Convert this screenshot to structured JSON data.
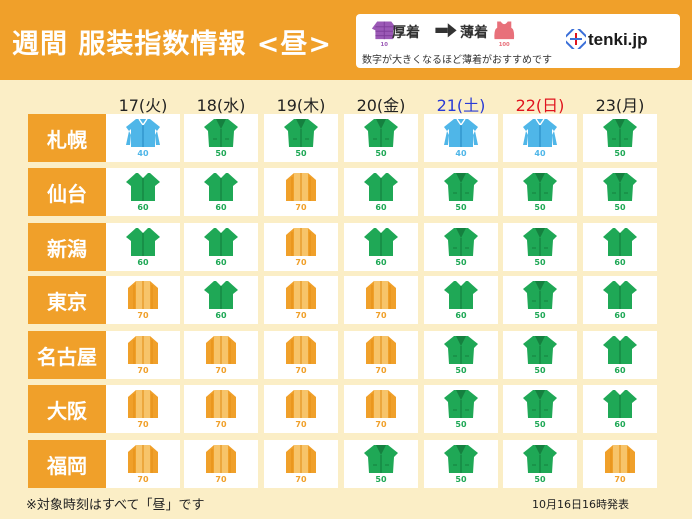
{
  "header": {
    "title": "週間 服装指数情報 <昼>",
    "legend": {
      "thick_label": "厚着",
      "thin_label": "薄着",
      "thick_value": "10",
      "thin_value": "100",
      "note": "数字が大きくなるほど薄着がおすすめです",
      "arrow_icon": "arrow-right-icon"
    },
    "brand": "tenki.jp"
  },
  "days": [
    {
      "label": "17(火)",
      "color": "#222222"
    },
    {
      "label": "18(水)",
      "color": "#222222"
    },
    {
      "label": "19(木)",
      "color": "#222222"
    },
    {
      "label": "20(金)",
      "color": "#222222"
    },
    {
      "label": "21(土)",
      "color": "#2a3bd6"
    },
    {
      "label": "22(日)",
      "color": "#e0141e"
    },
    {
      "label": "23(月)",
      "color": "#222222"
    }
  ],
  "cities": [
    {
      "name": "札幌",
      "values": [
        "40",
        "50",
        "50",
        "50",
        "40",
        "40",
        "50"
      ]
    },
    {
      "name": "仙台",
      "values": [
        "60",
        "60",
        "70",
        "60",
        "50",
        "50",
        "50"
      ]
    },
    {
      "name": "新潟",
      "values": [
        "60",
        "60",
        "70",
        "60",
        "50",
        "50",
        "60"
      ]
    },
    {
      "name": "東京",
      "values": [
        "70",
        "60",
        "70",
        "70",
        "60",
        "50",
        "60"
      ]
    },
    {
      "name": "名古屋",
      "values": [
        "70",
        "70",
        "70",
        "70",
        "50",
        "50",
        "60"
      ]
    },
    {
      "name": "大阪",
      "values": [
        "70",
        "70",
        "70",
        "70",
        "50",
        "50",
        "60"
      ]
    },
    {
      "name": "福岡",
      "values": [
        "70",
        "70",
        "70",
        "50",
        "50",
        "50",
        "70"
      ]
    }
  ],
  "index_colors": {
    "10": "#9b59b6",
    "40": "#4fb6e8",
    "50": "#1fa856",
    "60": "#1fa856",
    "70": "#f0a02a",
    "100": "#e8707a"
  },
  "icons": {
    "40": "light-coat-icon",
    "50": "jacket-icon",
    "60": "long-sleeve-shirt-icon",
    "70": "cardigan-icon"
  },
  "footer": {
    "note": "※対象時刻はすべて「昼」です",
    "issued": "10月16日16時発表"
  }
}
